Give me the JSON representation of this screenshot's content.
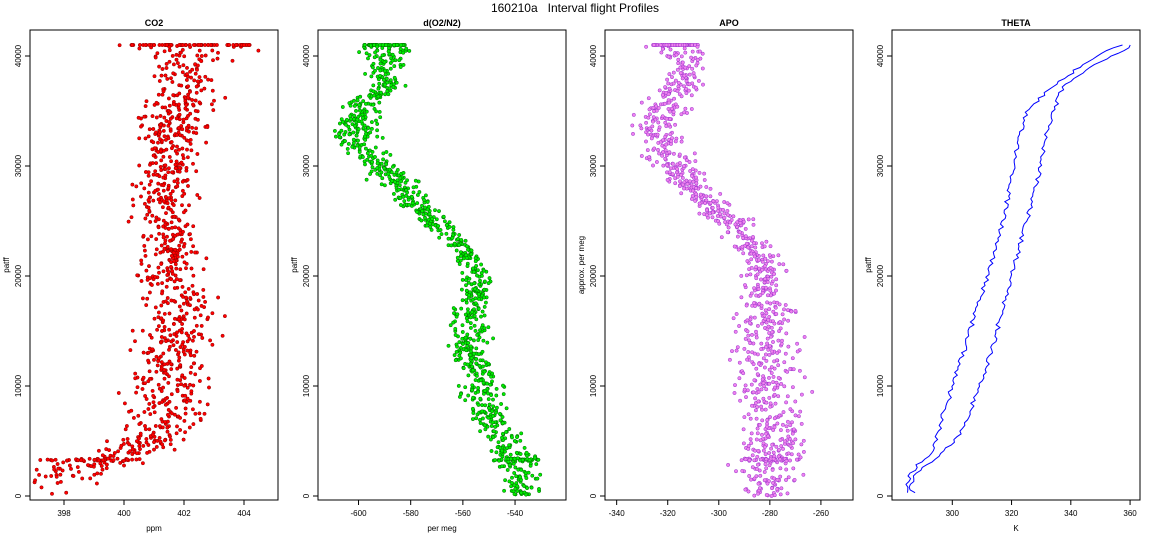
{
  "page_title": "160210a   Interval flight Profiles",
  "chart_data": [
    {
      "type": "scatter",
      "title": "CO2",
      "xlabel": "ppm",
      "ylabel": "patff",
      "xlim": [
        397,
        405
      ],
      "ylim": [
        0,
        42000
      ],
      "xticks": [
        "398",
        "400",
        "402",
        "404"
      ],
      "yticks": [
        "0",
        "10000",
        "20000",
        "30000",
        "40000"
      ],
      "grid": false,
      "color": "#ff0000",
      "edge_color": "#8b0000",
      "series": [
        {
          "y": [
            0,
            1500,
            3000,
            3200,
            3500,
            4500,
            5500,
            7000,
            9000,
            11000,
            13000,
            15000,
            17000,
            20000,
            22000,
            25000,
            28000,
            30000,
            32000,
            34000,
            36000,
            38000,
            40000,
            41000
          ],
          "x_center": [
            395.8,
            397.5,
            399.2,
            398.8,
            399.8,
            400.6,
            401.0,
            401.4,
            401.5,
            401.4,
            401.7,
            401.6,
            401.9,
            401.4,
            401.6,
            401.3,
            401.4,
            401.5,
            401.6,
            401.8,
            401.9,
            402.1,
            402.2,
            402.2
          ],
          "x_spread": [
            1.5,
            1.2,
            1.0,
            1.6,
            1.0,
            0.8,
            0.8,
            1.0,
            1.1,
            1.0,
            1.0,
            1.0,
            1.0,
            0.7,
            0.7,
            0.7,
            0.8,
            0.7,
            0.8,
            0.9,
            0.9,
            0.9,
            0.9,
            2.0
          ]
        }
      ]
    },
    {
      "type": "scatter",
      "title": "d(O2/N2)",
      "xlabel": "per meg",
      "ylabel": "patff",
      "xlim": [
        -614,
        -522
      ],
      "ylim": [
        0,
        42000
      ],
      "xticks": [
        "-600",
        "-580",
        "-560",
        "-540"
      ],
      "yticks": [
        "0",
        "10000",
        "20000",
        "30000",
        "40000"
      ],
      "grid": false,
      "color": "#00ee00",
      "edge_color": "#006400",
      "series": [
        {
          "y": [
            0,
            1500,
            3000,
            3500,
            5000,
            7000,
            9000,
            11000,
            13000,
            15000,
            17000,
            19000,
            21000,
            23000,
            25000,
            27000,
            29000,
            31000,
            33000,
            35000,
            37000,
            39000,
            41000
          ],
          "x_center": [
            -537,
            -538,
            -539,
            -540,
            -543,
            -549,
            -553,
            -553,
            -558,
            -557,
            -557,
            -554,
            -556,
            -562,
            -570,
            -580,
            -587,
            -596,
            -602,
            -599,
            -591,
            -588,
            -590
          ],
          "x_spread": [
            5,
            5,
            6,
            8,
            6,
            6,
            6,
            6,
            6,
            6,
            5,
            4,
            4,
            4,
            4,
            5,
            6,
            6,
            6,
            6,
            5,
            5,
            8
          ]
        }
      ]
    },
    {
      "type": "scatter",
      "title": "APO",
      "xlabel": "",
      "ylabel": "approx. per meg",
      "xlim": [
        -343,
        -249
      ],
      "ylim": [
        0,
        42000
      ],
      "xticks": [
        "-340",
        "-320",
        "-300",
        "-280",
        "-260"
      ],
      "yticks": [
        "0",
        "10000",
        "20000",
        "30000",
        "40000"
      ],
      "grid": false,
      "color": "#ee82ee",
      "edge_color": "#9932cc",
      "series": [
        {
          "y": [
            0,
            1500,
            3000,
            3500,
            5000,
            7000,
            9000,
            11000,
            13000,
            15000,
            17000,
            19000,
            21000,
            23000,
            25000,
            27000,
            29000,
            31000,
            33000,
            35000,
            37000,
            39000,
            41000
          ],
          "x_center": [
            -281,
            -280,
            -280,
            -280,
            -278,
            -279,
            -281,
            -281,
            -282,
            -282,
            -280,
            -283,
            -282,
            -288,
            -295,
            -306,
            -312,
            -321,
            -325,
            -322,
            -316,
            -312,
            -317
          ],
          "x_spread": [
            8,
            9,
            10,
            9,
            9,
            9,
            10,
            10,
            10,
            9,
            8,
            6,
            5,
            5,
            6,
            6,
            6,
            7,
            7,
            7,
            6,
            5,
            9
          ]
        }
      ]
    },
    {
      "type": "line",
      "title": "THETA",
      "xlabel": "K",
      "ylabel": "patff",
      "xlim": [
        281,
        362
      ],
      "ylim": [
        0,
        42000
      ],
      "xticks": [
        "300",
        "320",
        "340",
        "360"
      ],
      "yticks": [
        "0",
        "10000",
        "20000",
        "30000",
        "40000"
      ],
      "grid": false,
      "color": "#0000ff",
      "series": [
        {
          "name": "",
          "y": [
            300,
            500,
            1000,
            2000,
            3000,
            4000,
            5000,
            6000,
            8000,
            9000,
            11000,
            14000,
            17000,
            20000,
            23000,
            26000,
            29000,
            32000,
            35000,
            37000,
            39000,
            40500,
            41000
          ],
          "x": [
            285,
            285,
            285,
            286,
            289,
            293,
            294,
            296,
            297,
            299,
            301,
            305,
            308,
            312,
            315,
            318,
            320,
            322,
            325,
            333,
            343,
            352,
            358
          ]
        },
        {
          "name": "",
          "y": [
            300,
            500,
            1000,
            2000,
            3000,
            4000,
            5000,
            7000,
            10000,
            13000,
            17000,
            20000,
            23000,
            26000,
            29000,
            32000,
            34000,
            35500,
            37000,
            38000,
            39000,
            40000,
            40500,
            41000
          ],
          "x": [
            288,
            286,
            286,
            288,
            292,
            297,
            301,
            305,
            309,
            313,
            317,
            320,
            323,
            326,
            329,
            331,
            333,
            335,
            337,
            341,
            347,
            354,
            358,
            360
          ]
        }
      ]
    }
  ]
}
